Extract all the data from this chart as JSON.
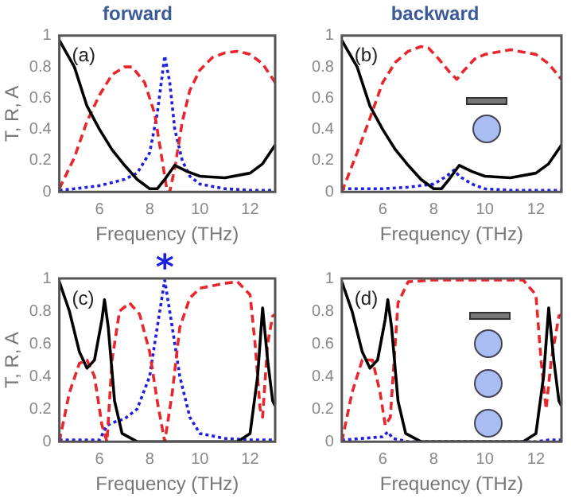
{
  "chart_data": [
    {
      "type": "line",
      "title": "forward",
      "xlabel": "Frequency (THz)",
      "ylabel": "T, R, A",
      "xlim": [
        4.4,
        13.0
      ],
      "xticks": [
        6,
        8,
        10,
        12
      ],
      "ylim": [
        0,
        1
      ],
      "yticks": [
        0,
        0.2,
        0.4,
        0.6,
        0.8,
        1
      ],
      "annotations": [
        "(a)"
      ],
      "series": [
        {
          "color": "#000000",
          "line_style": "solid",
          "x": [
            4.4,
            5,
            5.5,
            6,
            6.5,
            7,
            7.5,
            8,
            8.3,
            8.6,
            9,
            9.5,
            10,
            11,
            12,
            12.5,
            13
          ],
          "values": [
            0.97,
            0.8,
            0.55,
            0.4,
            0.27,
            0.17,
            0.08,
            0.02,
            0.02,
            0.08,
            0.17,
            0.13,
            0.1,
            0.09,
            0.12,
            0.18,
            0.3
          ]
        },
        {
          "color": "#e8262b",
          "line_style": "dashed",
          "x": [
            4.4,
            5,
            5.5,
            6,
            6.5,
            7,
            7.3,
            7.8,
            8.2,
            8.5,
            8.7,
            8.8,
            9,
            9.3,
            9.6,
            10,
            10.5,
            11,
            11.5,
            12,
            12.5,
            13
          ],
          "values": [
            0.02,
            0.22,
            0.45,
            0.62,
            0.75,
            0.8,
            0.8,
            0.7,
            0.5,
            0.2,
            0,
            0,
            0.15,
            0.45,
            0.65,
            0.78,
            0.86,
            0.89,
            0.9,
            0.88,
            0.82,
            0.7
          ]
        },
        {
          "color": "#1f1fe0",
          "line_style": "dotted",
          "x": [
            4.4,
            5,
            6,
            7,
            7.5,
            8,
            8.3,
            8.6,
            8.8,
            9,
            9.3,
            9.6,
            10,
            11,
            12,
            13
          ],
          "values": [
            0.01,
            0.02,
            0.04,
            0.08,
            0.12,
            0.25,
            0.5,
            0.87,
            0.7,
            0.4,
            0.2,
            0.1,
            0.05,
            0.02,
            0.01,
            0.01
          ]
        }
      ]
    },
    {
      "type": "line",
      "title": "backward",
      "xlabel": "Frequency (THz)",
      "xlim": [
        4.4,
        13.0
      ],
      "xticks": [
        6,
        8,
        10,
        12
      ],
      "ylim": [
        0,
        1
      ],
      "yticks": [
        0,
        0.2,
        0.4,
        0.6,
        0.8,
        1
      ],
      "annotations": [
        "(b)"
      ],
      "series": [
        {
          "color": "#000000",
          "line_style": "solid",
          "x": [
            4.4,
            5,
            5.5,
            6,
            6.5,
            7,
            7.5,
            8,
            8.3,
            8.6,
            9,
            9.5,
            10,
            11,
            12,
            12.5,
            13
          ],
          "values": [
            0.97,
            0.8,
            0.55,
            0.4,
            0.27,
            0.17,
            0.08,
            0.02,
            0.02,
            0.08,
            0.17,
            0.13,
            0.1,
            0.09,
            0.12,
            0.18,
            0.3
          ]
        },
        {
          "color": "#e8262b",
          "line_style": "dashed",
          "x": [
            4.4,
            5,
            5.5,
            6,
            6.5,
            7,
            7.5,
            7.8,
            8.2,
            8.6,
            8.9,
            9.2,
            9.6,
            10,
            11,
            12,
            12.5,
            13
          ],
          "values": [
            0,
            0.25,
            0.47,
            0.7,
            0.83,
            0.9,
            0.93,
            0.92,
            0.85,
            0.77,
            0.72,
            0.78,
            0.85,
            0.88,
            0.91,
            0.88,
            0.82,
            0.72
          ]
        },
        {
          "color": "#1f1fe0",
          "line_style": "dotted",
          "x": [
            4.4,
            6,
            7,
            8,
            8.5,
            8.8,
            9,
            9.5,
            10,
            11,
            13
          ],
          "values": [
            0.02,
            0.02,
            0.03,
            0.05,
            0.1,
            0.14,
            0.1,
            0.05,
            0.02,
            0.01,
            0.01
          ]
        }
      ]
    },
    {
      "type": "line",
      "xlabel": "Frequency (THz)",
      "ylabel": "T, R, A",
      "xlim": [
        4.4,
        13.0
      ],
      "xticks": [
        6,
        8,
        10,
        12
      ],
      "ylim": [
        0,
        1
      ],
      "yticks": [
        0,
        0.2,
        0.4,
        0.6,
        0.8,
        1
      ],
      "annotations": [
        "(c)",
        {
          "text": "*",
          "x": 8.6,
          "y": 1
        }
      ],
      "series": [
        {
          "color": "#000000",
          "line_style": "solid",
          "x": [
            4.4,
            4.8,
            5.2,
            5.5,
            5.8,
            6.1,
            6.2,
            6.35,
            6.6,
            6.9,
            7.5,
            11.5,
            12,
            12.3,
            12.5,
            12.7,
            12.9,
            13
          ],
          "values": [
            0.98,
            0.8,
            0.55,
            0.45,
            0.5,
            0.75,
            0.87,
            0.7,
            0.25,
            0.05,
            0,
            0,
            0.05,
            0.4,
            0.82,
            0.5,
            0.25,
            0.22
          ]
        },
        {
          "color": "#e8262b",
          "line_style": "dashed",
          "x": [
            4.4,
            4.8,
            5.2,
            5.5,
            5.8,
            6.1,
            6.3,
            6.5,
            6.8,
            7.2,
            7.6,
            8,
            8.3,
            8.6,
            8.9,
            9.2,
            9.6,
            10,
            11,
            11.5,
            12,
            12.2,
            12.4,
            12.5,
            12.7,
            12.9,
            13
          ],
          "values": [
            0,
            0.3,
            0.48,
            0.5,
            0.4,
            0.1,
            0,
            0.5,
            0.8,
            0.85,
            0.78,
            0.55,
            0.25,
            0,
            0.3,
            0.7,
            0.88,
            0.94,
            0.97,
            0.98,
            0.9,
            0.6,
            0.2,
            0.15,
            0.6,
            0.77,
            0.78
          ]
        },
        {
          "color": "#1f1fe0",
          "line_style": "dotted",
          "x": [
            4.4,
            6,
            6.3,
            6.6,
            7,
            7.5,
            8,
            8.3,
            8.6,
            8.9,
            9.2,
            9.6,
            10,
            11,
            12,
            13
          ],
          "values": [
            0.01,
            0.01,
            0.1,
            0.12,
            0.14,
            0.2,
            0.4,
            0.7,
            0.99,
            0.7,
            0.4,
            0.15,
            0.05,
            0.02,
            0.01,
            0.01
          ]
        }
      ]
    },
    {
      "type": "line",
      "xlabel": "Frequency (THz)",
      "xlim": [
        4.4,
        13.0
      ],
      "xticks": [
        6,
        8,
        10,
        12
      ],
      "ylim": [
        0,
        1
      ],
      "yticks": [
        0,
        0.2,
        0.4,
        0.6,
        0.8,
        1
      ],
      "annotations": [
        "(d)"
      ],
      "series": [
        {
          "color": "#000000",
          "line_style": "solid",
          "x": [
            4.4,
            4.8,
            5.2,
            5.5,
            5.8,
            6.1,
            6.2,
            6.35,
            6.6,
            6.9,
            7.5,
            11.5,
            12,
            12.3,
            12.5,
            12.7,
            12.9,
            13
          ],
          "values": [
            0.98,
            0.8,
            0.55,
            0.45,
            0.5,
            0.75,
            0.87,
            0.7,
            0.25,
            0.05,
            0,
            0,
            0.05,
            0.4,
            0.82,
            0.5,
            0.25,
            0.22
          ]
        },
        {
          "color": "#e8262b",
          "line_style": "dashed",
          "x": [
            4.4,
            4.8,
            5.2,
            5.6,
            5.9,
            6.1,
            6.3,
            6.6,
            7,
            8,
            11.5,
            12,
            12.2,
            12.4,
            12.6,
            12.9,
            13
          ],
          "values": [
            0,
            0.3,
            0.5,
            0.5,
            0.3,
            0.1,
            0.15,
            0.85,
            0.98,
            0.99,
            0.99,
            0.9,
            0.5,
            0.2,
            0.5,
            0.77,
            0.78
          ]
        },
        {
          "color": "#1f1fe0",
          "line_style": "dotted",
          "x": [
            4.4,
            6,
            6.2,
            6.4,
            7,
            12,
            12.5,
            13
          ],
          "values": [
            0.01,
            0.03,
            0.06,
            0.02,
            0,
            0,
            0.01,
            0.01
          ]
        }
      ]
    }
  ]
}
